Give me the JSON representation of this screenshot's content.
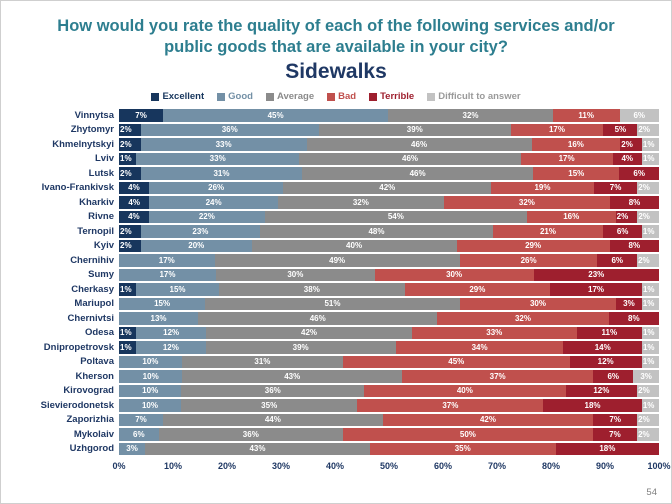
{
  "title": {
    "line1": "How would you rate the quality of each of the following services and/or",
    "line2": "public goods that are available in your city?",
    "subtitle": "Sidewalks"
  },
  "page_number": "54",
  "legend": {
    "items": [
      {
        "key": "excellent",
        "label": "Excellent"
      },
      {
        "key": "good",
        "label": "Good"
      },
      {
        "key": "average",
        "label": "Average"
      },
      {
        "key": "bad",
        "label": "Bad"
      },
      {
        "key": "terrible",
        "label": "Terrible"
      },
      {
        "key": "dk",
        "label": "Difficult to answer"
      }
    ]
  },
  "chart_data": {
    "type": "bar",
    "variant": "stacked-horizontal-100percent",
    "title": "Sidewalks",
    "legend_position": "top",
    "series_names": [
      "Excellent",
      "Good",
      "Average",
      "Bad",
      "Terrible",
      "Difficult to answer"
    ],
    "colors": {
      "excellent": "#17365D",
      "good": "#7390A6",
      "average": "#8B8B8B",
      "bad": "#C0504D",
      "terrible": "#9E1F2E",
      "dk": "#C2C2C2"
    },
    "x_ticks": [
      "0%",
      "10%",
      "20%",
      "30%",
      "40%",
      "50%",
      "60%",
      "70%",
      "80%",
      "90%",
      "100%"
    ],
    "rows": [
      {
        "city": "Vinnytsa",
        "segments": [
          {
            "key": "excellent",
            "value": 7,
            "label": "7%"
          },
          {
            "key": "good",
            "value": 45,
            "label": "45%"
          },
          {
            "key": "average",
            "value": 32,
            "label": "32%"
          },
          {
            "key": "bad",
            "value": 11,
            "label": "11%"
          },
          {
            "key": "dk",
            "value": 6,
            "label": "6%"
          }
        ]
      },
      {
        "city": "Zhytomyr",
        "segments": [
          {
            "key": "excellent",
            "value": 2,
            "label": "2%"
          },
          {
            "key": "good",
            "value": 36,
            "label": "36%"
          },
          {
            "key": "average",
            "value": 39,
            "label": "39%"
          },
          {
            "key": "bad",
            "value": 17,
            "label": "17%"
          },
          {
            "key": "terrible",
            "value": 5,
            "label": "5%"
          },
          {
            "key": "dk",
            "value": 2,
            "label": "2%"
          }
        ]
      },
      {
        "city": "Khmelnytskyi",
        "segments": [
          {
            "key": "excellent",
            "value": 2,
            "label": "2%"
          },
          {
            "key": "good",
            "value": 33,
            "label": "33%"
          },
          {
            "key": "average",
            "value": 46,
            "label": "46%"
          },
          {
            "key": "bad",
            "value": 16,
            "label": "16%"
          },
          {
            "key": "terrible",
            "value": 2,
            "label": "2%"
          },
          {
            "key": "dk",
            "value": 1,
            "label": "1%"
          }
        ]
      },
      {
        "city": "Lviv",
        "segments": [
          {
            "key": "excellent",
            "value": 1,
            "label": "1%"
          },
          {
            "key": "good",
            "value": 33,
            "label": "33%"
          },
          {
            "key": "average",
            "value": 46,
            "label": "46%"
          },
          {
            "key": "bad",
            "value": 17,
            "label": "17%"
          },
          {
            "key": "terrible",
            "value": 4,
            "label": "4%"
          },
          {
            "key": "dk",
            "value": 1,
            "label": "1%"
          }
        ]
      },
      {
        "city": "Lutsk",
        "segments": [
          {
            "key": "excellent",
            "value": 2,
            "label": "2%"
          },
          {
            "key": "good",
            "value": 31,
            "label": "31%"
          },
          {
            "key": "average",
            "value": 46,
            "label": "46%"
          },
          {
            "key": "bad",
            "value": 15,
            "label": "15%"
          },
          {
            "key": "terrible",
            "value": 6,
            "label": "6%"
          }
        ]
      },
      {
        "city": "Ivano-Frankivsk",
        "segments": [
          {
            "key": "excellent",
            "value": 4,
            "label": "4%"
          },
          {
            "key": "good",
            "value": 26,
            "label": "26%"
          },
          {
            "key": "average",
            "value": 42,
            "label": "42%"
          },
          {
            "key": "bad",
            "value": 19,
            "label": "19%"
          },
          {
            "key": "terrible",
            "value": 7,
            "label": "7%"
          },
          {
            "key": "dk",
            "value": 2,
            "label": "2%"
          }
        ]
      },
      {
        "city": "Kharkiv",
        "segments": [
          {
            "key": "excellent",
            "value": 4,
            "label": "4%"
          },
          {
            "key": "good",
            "value": 24,
            "label": "24%"
          },
          {
            "key": "average",
            "value": 32,
            "label": "32%"
          },
          {
            "key": "bad",
            "value": 32,
            "label": "32%"
          },
          {
            "key": "terrible",
            "value": 8,
            "label": "8%"
          }
        ]
      },
      {
        "city": "Rivne",
        "segments": [
          {
            "key": "excellent",
            "value": 4,
            "label": "4%"
          },
          {
            "key": "good",
            "value": 22,
            "label": "22%"
          },
          {
            "key": "average",
            "value": 54,
            "label": "54%"
          },
          {
            "key": "bad",
            "value": 16,
            "label": "16%"
          },
          {
            "key": "terrible",
            "value": 2,
            "label": "2%"
          },
          {
            "key": "dk",
            "value": 2,
            "label": "2%"
          }
        ]
      },
      {
        "city": "Ternopil",
        "segments": [
          {
            "key": "excellent",
            "value": 2,
            "label": "2%"
          },
          {
            "key": "good",
            "value": 23,
            "label": "23%"
          },
          {
            "key": "average",
            "value": 48,
            "label": "48%"
          },
          {
            "key": "bad",
            "value": 21,
            "label": "21%"
          },
          {
            "key": "terrible",
            "value": 6,
            "label": "6%"
          },
          {
            "key": "dk",
            "value": 1,
            "label": "1%"
          }
        ]
      },
      {
        "city": "Kyiv",
        "segments": [
          {
            "key": "excellent",
            "value": 2,
            "label": "2%"
          },
          {
            "key": "good",
            "value": 20,
            "label": "20%"
          },
          {
            "key": "average",
            "value": 40,
            "label": "40%"
          },
          {
            "key": "bad",
            "value": 29,
            "label": "29%"
          },
          {
            "key": "terrible",
            "value": 8,
            "label": "8%"
          }
        ]
      },
      {
        "city": "Chernihiv",
        "segments": [
          {
            "key": "good",
            "value": 17,
            "label": "17%"
          },
          {
            "key": "average",
            "value": 49,
            "label": "49%"
          },
          {
            "key": "bad",
            "value": 26,
            "label": "26%"
          },
          {
            "key": "terrible",
            "value": 6,
            "label": "6%"
          },
          {
            "key": "dk",
            "value": 2,
            "label": "2%"
          }
        ]
      },
      {
        "city": "Sumy",
        "segments": [
          {
            "key": "good",
            "value": 17,
            "label": "17%"
          },
          {
            "key": "average",
            "value": 30,
            "label": "30%"
          },
          {
            "key": "bad",
            "value": 30,
            "label": "30%"
          },
          {
            "key": "terrible",
            "value": 23,
            "label": "23%"
          }
        ]
      },
      {
        "city": "Cherkasy",
        "segments": [
          {
            "key": "excellent",
            "value": 1,
            "label": "1%"
          },
          {
            "key": "good",
            "value": 15,
            "label": "15%"
          },
          {
            "key": "average",
            "value": 38,
            "label": "38%"
          },
          {
            "key": "bad",
            "value": 29,
            "label": "29%"
          },
          {
            "key": "terrible",
            "value": 17,
            "label": "17%"
          },
          {
            "key": "dk",
            "value": 1,
            "label": "1%"
          }
        ]
      },
      {
        "city": "Mariupol",
        "segments": [
          {
            "key": "good",
            "value": 15,
            "label": "15%"
          },
          {
            "key": "average",
            "value": 51,
            "label": "51%"
          },
          {
            "key": "bad",
            "value": 30,
            "label": "30%"
          },
          {
            "key": "terrible",
            "value": 3,
            "label": "3%"
          },
          {
            "key": "dk",
            "value": 1,
            "label": "1%"
          }
        ]
      },
      {
        "city": "Chernivtsi",
        "segments": [
          {
            "key": "good",
            "value": 13,
            "label": "13%"
          },
          {
            "key": "average",
            "value": 46,
            "label": "46%"
          },
          {
            "key": "bad",
            "value": 32,
            "label": "32%"
          },
          {
            "key": "terrible",
            "value": 8,
            "label": "8%"
          }
        ]
      },
      {
        "city": "Odesa",
        "segments": [
          {
            "key": "excellent",
            "value": 1,
            "label": "1%"
          },
          {
            "key": "good",
            "value": 12,
            "label": "12%"
          },
          {
            "key": "average",
            "value": 42,
            "label": "42%"
          },
          {
            "key": "bad",
            "value": 33,
            "label": "33%"
          },
          {
            "key": "terrible",
            "value": 11,
            "label": "11%"
          },
          {
            "key": "dk",
            "value": 1,
            "label": "1%"
          }
        ]
      },
      {
        "city": "Dnipropetrovsk",
        "segments": [
          {
            "key": "excellent",
            "value": 1,
            "label": "1%"
          },
          {
            "key": "good",
            "value": 12,
            "label": "12%"
          },
          {
            "key": "average",
            "value": 39,
            "label": "39%"
          },
          {
            "key": "bad",
            "value": 34,
            "label": "34%"
          },
          {
            "key": "terrible",
            "value": 14,
            "label": "14%"
          },
          {
            "key": "dk",
            "value": 1,
            "label": "1%"
          }
        ]
      },
      {
        "city": "Poltava",
        "segments": [
          {
            "key": "good",
            "value": 10,
            "label": "10%"
          },
          {
            "key": "average",
            "value": 31,
            "label": "31%"
          },
          {
            "key": "bad",
            "value": 45,
            "label": "45%"
          },
          {
            "key": "terrible",
            "value": 12,
            "label": "12%"
          },
          {
            "key": "dk",
            "value": 1,
            "label": "1%"
          }
        ]
      },
      {
        "city": "Kherson",
        "segments": [
          {
            "key": "good",
            "value": 10,
            "label": "10%"
          },
          {
            "key": "average",
            "value": 43,
            "label": "43%"
          },
          {
            "key": "bad",
            "value": 37,
            "label": "37%"
          },
          {
            "key": "terrible",
            "value": 6,
            "label": "6%"
          },
          {
            "key": "dk",
            "value": 3,
            "label": "3%"
          }
        ]
      },
      {
        "city": "Kirovograd",
        "segments": [
          {
            "key": "good",
            "value": 10,
            "label": "10%"
          },
          {
            "key": "average",
            "value": 36,
            "label": "36%"
          },
          {
            "key": "bad",
            "value": 40,
            "label": "40%"
          },
          {
            "key": "terrible",
            "value": 12,
            "label": "12%"
          },
          {
            "key": "dk",
            "value": 2,
            "label": "2%"
          }
        ]
      },
      {
        "city": "Sievierodonetsk",
        "segments": [
          {
            "key": "good",
            "value": 10,
            "label": "10%"
          },
          {
            "key": "average",
            "value": 35,
            "label": "35%"
          },
          {
            "key": "bad",
            "value": 37,
            "label": "37%"
          },
          {
            "key": "terrible",
            "value": 18,
            "label": "18%"
          },
          {
            "key": "dk",
            "value": 1,
            "label": "1%"
          }
        ]
      },
      {
        "city": "Zaporizhia",
        "segments": [
          {
            "key": "good",
            "value": 7,
            "label": "7%"
          },
          {
            "key": "average",
            "value": 44,
            "label": "44%"
          },
          {
            "key": "bad",
            "value": 42,
            "label": "42%"
          },
          {
            "key": "terrible",
            "value": 7,
            "label": "7%"
          },
          {
            "key": "dk",
            "value": 2,
            "label": "2%"
          }
        ]
      },
      {
        "city": "Mykolaiv",
        "segments": [
          {
            "key": "good",
            "value": 6,
            "label": "6%"
          },
          {
            "key": "average",
            "value": 36,
            "label": "36%"
          },
          {
            "key": "bad",
            "value": 50,
            "label": "50%"
          },
          {
            "key": "terrible",
            "value": 7,
            "label": "7%"
          },
          {
            "key": "dk",
            "value": 2,
            "label": "2%"
          }
        ]
      },
      {
        "city": "Uzhgorod",
        "segments": [
          {
            "key": "good",
            "value": 3,
            "label": "3%"
          },
          {
            "key": "average",
            "value": 43,
            "label": "43%"
          },
          {
            "key": "bad",
            "value": 35,
            "label": "35%"
          },
          {
            "key": "terrible",
            "value": 18,
            "label": "18%"
          }
        ]
      }
    ]
  }
}
